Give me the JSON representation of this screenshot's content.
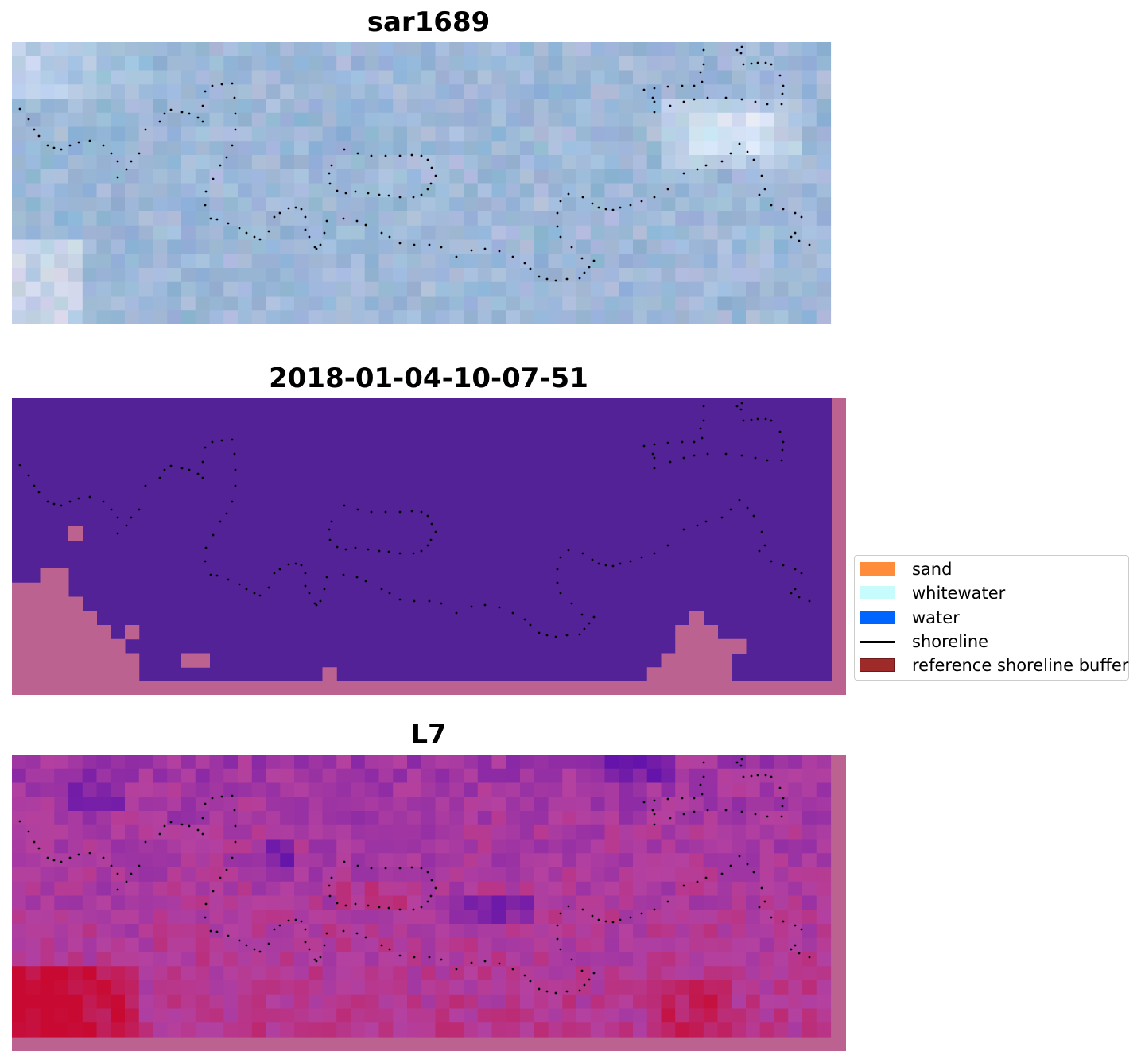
{
  "panels": [
    {
      "title": "sar1689",
      "kind": "rgb"
    },
    {
      "title": "2018-01-04-10-07-51",
      "kind": "classification"
    },
    {
      "title": "L7",
      "kind": "index"
    }
  ],
  "legend": {
    "items": [
      {
        "label": "sand",
        "type": "patch",
        "color": "#ff8c3a"
      },
      {
        "label": "whitewater",
        "type": "patch",
        "color": "#c8fcfc"
      },
      {
        "label": "water",
        "type": "patch",
        "color": "#0064ff"
      },
      {
        "label": "shoreline",
        "type": "line",
        "color": "#000000"
      },
      {
        "label": "reference shoreline buffer",
        "type": "patch",
        "color": "#9e2a2a",
        "border": "#6e1a1a"
      }
    ]
  },
  "colors": {
    "classification_background": "#532296",
    "buffer_overlay": "#bc6290",
    "sar_base": "#9fb8d8",
    "index_base": "#a84aa0",
    "shoreline_points": "#000000"
  }
}
